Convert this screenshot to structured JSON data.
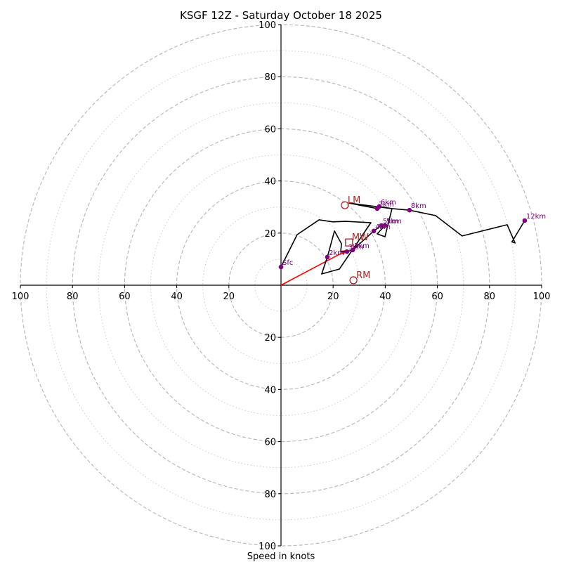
{
  "chart_data": {
    "type": "line",
    "subtype": "hodograph",
    "title": "KSGF 12Z - Saturday October 18 2025",
    "xlabel": "Speed in knots",
    "xlim": [
      -100,
      100
    ],
    "ylim": [
      -100,
      100
    ],
    "x_tick_labels": [
      "100",
      "80",
      "60",
      "40",
      "20",
      "20",
      "40",
      "60",
      "80",
      "100"
    ],
    "x_tick_values": [
      -100,
      -80,
      -60,
      -40,
      -20,
      20,
      40,
      60,
      80,
      100
    ],
    "y_tick_labels": [
      "100",
      "80",
      "60",
      "40",
      "20",
      "20",
      "40",
      "60",
      "80",
      "100"
    ],
    "y_tick_values": [
      100,
      80,
      60,
      40,
      20,
      -20,
      -40,
      -60,
      -80,
      -100
    ],
    "rings_dashed": [
      20,
      40,
      60,
      80,
      100
    ],
    "rings_dotted": [
      10,
      30,
      50,
      70,
      90
    ],
    "colors": {
      "profile": "#000000",
      "heights": "#800080",
      "motion": "#b22222",
      "vector": "#ff0000",
      "grid": "#bbbbbb"
    },
    "profile": {
      "u": [
        0,
        6.2,
        14.6,
        19.9,
        24.8,
        34.5,
        22.4,
        15.6,
        17.8,
        20.5,
        23.2,
        22.9,
        25.3,
        27.5,
        35.6,
        38.5,
        39.9,
        36.9,
        39.9,
        42.6,
        37.7,
        36.9,
        26.1,
        42.6,
        49.3,
        59.3,
        69.5,
        86.8,
        89.8,
        88.6,
        93.5
      ],
      "v": [
        7.0,
        19.4,
        25.1,
        24.3,
        24.5,
        24.0,
        6.2,
        4.3,
        10.8,
        20.8,
        15.9,
        12.9,
        12.9,
        13.5,
        20.8,
        22.9,
        22.9,
        19.7,
        18.6,
        29.4,
        30.2,
        29.4,
        31.5,
        29.4,
        28.8,
        26.7,
        18.9,
        23.2,
        16.2,
        16.6,
        24.8
      ]
    },
    "height_markers": [
      {
        "label": "Sfc",
        "u": 0,
        "v": 7.0
      },
      {
        "label": "2km",
        "u": 17.8,
        "v": 10.8
      },
      {
        "label": "3km",
        "u": 25.3,
        "v": 12.9
      },
      {
        "label": "3km",
        "u": 27.5,
        "v": 13.5
      },
      {
        "label": "4km",
        "u": 35.6,
        "v": 20.8
      },
      {
        "label": "5km",
        "u": 38.5,
        "v": 22.9
      },
      {
        "label": "5km",
        "u": 39.9,
        "v": 22.9
      },
      {
        "label": "6km",
        "u": 37.7,
        "v": 30.2
      },
      {
        "label": "7km",
        "u": 36.9,
        "v": 29.4
      },
      {
        "label": "8km",
        "u": 49.3,
        "v": 28.8
      },
      {
        "label": "12km",
        "u": 93.5,
        "v": 24.8
      }
    ],
    "storm_motions": [
      {
        "label": "LM",
        "u": 24.5,
        "v": 30.7,
        "marker": "circle"
      },
      {
        "label": "RM",
        "u": 27.8,
        "v": 1.9,
        "marker": "circle"
      },
      {
        "label": "MW",
        "u": 26.1,
        "v": 16.4,
        "marker": "square"
      }
    ],
    "mean_wind_vector": {
      "u": 25.5,
      "v": 13.5
    }
  }
}
